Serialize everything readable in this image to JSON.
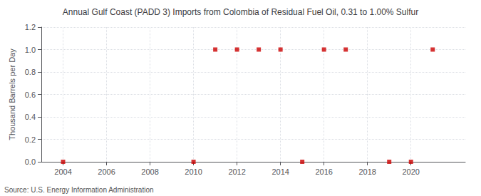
{
  "chart_data": {
    "type": "scatter",
    "title": "Annual Gulf Coast (PADD 3) Imports from Colombia of Residual Fuel Oil, 0.31 to 1.00% Sulfur",
    "y_label": "Thousand Barrels per Day",
    "annotations": [
      "Source: U.S. Energy Information Administration"
    ],
    "x": [
      2004,
      2010,
      2011,
      2012,
      2013,
      2014,
      2015,
      2016,
      2017,
      2019,
      2020,
      2021
    ],
    "values": [
      0.0,
      0.0,
      1.0,
      1.0,
      1.0,
      1.0,
      0.0,
      1.0,
      1.0,
      0.0,
      0.0,
      1.0
    ],
    "color": "#cc0000",
    "marker": "square",
    "xlim": [
      2003.0,
      2022.5
    ],
    "xticks": [
      2004,
      2006,
      2008,
      2010,
      2012,
      2014,
      2016,
      2018,
      2020
    ],
    "ylim": [
      0.0,
      1.2
    ],
    "yticks": [
      {
        "value": 0.0,
        "label": "0.0"
      },
      0.2,
      0.4,
      0.6,
      0.8,
      {
        "value": 1.0,
        "label": "1.0"
      },
      1.2
    ],
    "grid": true
  }
}
